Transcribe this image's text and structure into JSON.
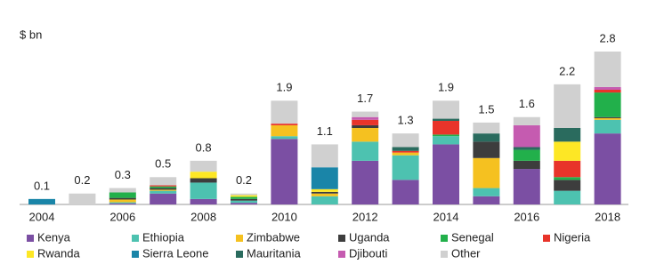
{
  "chart_data": {
    "type": "stacked-bar",
    "y_label": "$ bn",
    "categories": [
      "2004",
      null,
      "2006",
      null,
      "2008",
      null,
      "2010",
      null,
      "2012",
      null,
      "2014",
      null,
      "2016",
      null,
      "2018"
    ],
    "totals": [
      0.1,
      0.2,
      0.3,
      0.5,
      0.8,
      0.2,
      1.9,
      1.1,
      1.7,
      1.3,
      1.9,
      1.5,
      1.6,
      2.2,
      2.8
    ],
    "series": [
      {
        "name": "Kenya",
        "color": "#7b4fa3",
        "values": [
          0,
          0,
          0.02,
          0.2,
          0.1,
          0.03,
          1.2,
          0,
          0.8,
          0.45,
          1.1,
          0.15,
          0.65,
          0,
          1.3
        ]
      },
      {
        "name": "Ethiopia",
        "color": "#4dc2b0",
        "values": [
          0,
          0,
          0.02,
          0.05,
          0.3,
          0.04,
          0.05,
          0.15,
          0.35,
          0.45,
          0.15,
          0.15,
          0,
          0.25,
          0.25
        ]
      },
      {
        "name": "Zimbabwe",
        "color": "#f5c120",
        "values": [
          0,
          0,
          0.05,
          0.02,
          0,
          0,
          0.2,
          0.05,
          0.25,
          0.05,
          0,
          0.55,
          0,
          0,
          0.03
        ]
      },
      {
        "name": "Uganda",
        "color": "#3d3d3d",
        "values": [
          0,
          0,
          0.03,
          0.03,
          0.08,
          0.03,
          0,
          0.03,
          0.05,
          0,
          0,
          0.3,
          0.15,
          0.2,
          0.02
        ]
      },
      {
        "name": "Senegal",
        "color": "#22b04b",
        "values": [
          0,
          0,
          0.1,
          0.03,
          0,
          0.04,
          0,
          0,
          0,
          0,
          0.03,
          0,
          0.2,
          0.05,
          0.45
        ]
      },
      {
        "name": "Nigeria",
        "color": "#e8342a",
        "values": [
          0,
          0,
          0,
          0.02,
          0,
          0,
          0.03,
          0,
          0.1,
          0.03,
          0.25,
          0,
          0,
          0.3,
          0.05
        ]
      },
      {
        "name": "Rwanda",
        "color": "#fde725",
        "values": [
          0,
          0,
          0,
          0,
          0.12,
          0.03,
          0,
          0.05,
          0,
          0,
          0,
          0,
          0,
          0.35,
          0
        ]
      },
      {
        "name": "Sierra Leone",
        "color": "#1a85a8",
        "values": [
          0.1,
          0,
          0,
          0,
          0,
          0,
          0,
          0.4,
          0,
          0,
          0,
          0,
          0,
          0,
          0
        ]
      },
      {
        "name": "Mauritania",
        "color": "#2a6b5e",
        "values": [
          0,
          0,
          0,
          0,
          0,
          0,
          0,
          0,
          0,
          0.07,
          0.04,
          0.15,
          0.05,
          0.25,
          0
        ]
      },
      {
        "name": "Djibouti",
        "color": "#c55bb0",
        "values": [
          0,
          0,
          0,
          0,
          0,
          0,
          0,
          0,
          0.05,
          0,
          0,
          0,
          0.4,
          0,
          0.05
        ]
      },
      {
        "name": "Other",
        "color": "#d0d0d0",
        "values": [
          0,
          0.2,
          0.08,
          0.15,
          0.2,
          0.03,
          0.42,
          0.42,
          0.1,
          0.25,
          0.33,
          0.2,
          0.15,
          0.8,
          0.65
        ]
      }
    ]
  }
}
